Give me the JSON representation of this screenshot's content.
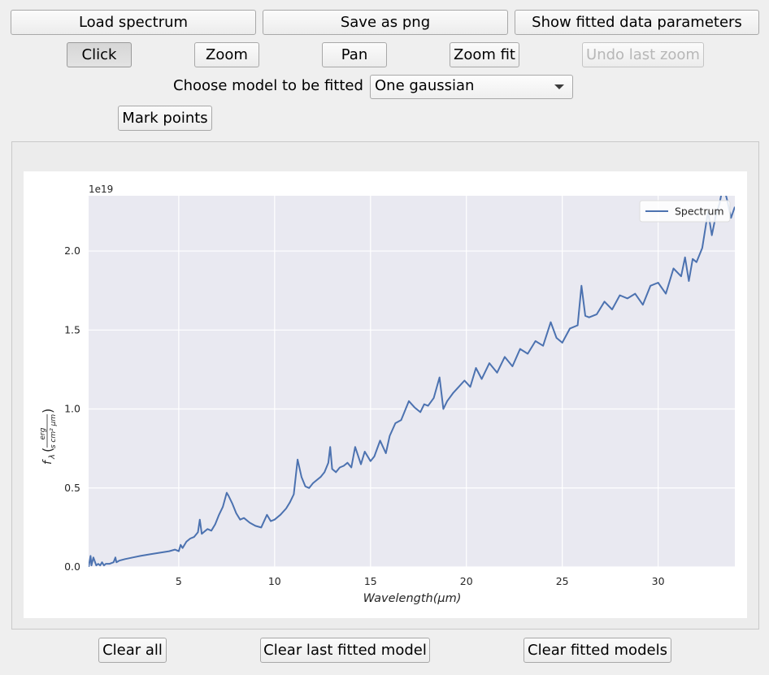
{
  "toolbar_row1": {
    "load": "Load spectrum",
    "save": "Save as png",
    "show_params": "Show fitted data parameters"
  },
  "toolbar_row2": {
    "click": "Click",
    "zoom": "Zoom",
    "pan": "Pan",
    "zoom_fit": "Zoom fit",
    "undo_zoom": "Undo last zoom"
  },
  "model_selector": {
    "label": "Choose model to be fitted",
    "selected": "One gaussian"
  },
  "mark_points": "Mark points",
  "bottom_buttons": {
    "clear_all": "Clear all",
    "clear_last": "Clear last fitted model",
    "clear_models": "Clear fitted models"
  },
  "chart_data": {
    "type": "line",
    "xlabel": "Wavelength(μm)",
    "ylabel": "f_λ(erg / s cm² μm)",
    "ylabel_parts": {
      "f": "f",
      "sub": "λ",
      "num": "erg",
      "den": "s cm² μm"
    },
    "offset_text": "1e19",
    "xlim": [
      0.3,
      34
    ],
    "ylim": [
      0,
      2.35
    ],
    "xticks": [
      5,
      10,
      15,
      20,
      25,
      30
    ],
    "yticks": [
      0.0,
      0.5,
      1.0,
      1.5,
      2.0
    ],
    "ytick_labels": [
      "0.0",
      "0.5",
      "1.0",
      "1.5",
      "2.0"
    ],
    "grid": true,
    "background": "#e9e9f1",
    "legend_position": "top-right",
    "series": [
      {
        "name": "Spectrum",
        "color": "#4c72b0",
        "x": [
          0.3,
          0.4,
          0.45,
          0.55,
          0.7,
          0.8,
          0.9,
          1.0,
          1.1,
          1.2,
          1.4,
          1.6,
          1.7,
          1.75,
          1.9,
          2.2,
          2.6,
          3.0,
          3.5,
          4.0,
          4.5,
          4.8,
          5.0,
          5.1,
          5.2,
          5.4,
          5.6,
          5.8,
          6.0,
          6.1,
          6.2,
          6.3,
          6.5,
          6.7,
          6.9,
          7.1,
          7.3,
          7.5,
          7.6,
          7.8,
          8.0,
          8.2,
          8.4,
          8.7,
          9.0,
          9.3,
          9.6,
          9.8,
          10.0,
          10.3,
          10.6,
          10.8,
          11.0,
          11.2,
          11.4,
          11.6,
          11.8,
          12.0,
          12.2,
          12.4,
          12.6,
          12.8,
          12.9,
          13.0,
          13.2,
          13.4,
          13.6,
          13.8,
          14.0,
          14.2,
          14.5,
          14.7,
          15.0,
          15.2,
          15.5,
          15.8,
          16.0,
          16.3,
          16.6,
          17.0,
          17.3,
          17.6,
          17.8,
          18.0,
          18.3,
          18.6,
          18.8,
          19.0,
          19.3,
          19.6,
          19.9,
          20.2,
          20.5,
          20.8,
          21.2,
          21.6,
          22.0,
          22.4,
          22.8,
          23.2,
          23.6,
          24.0,
          24.4,
          24.7,
          25.0,
          25.4,
          25.8,
          26.0,
          26.2,
          26.4,
          26.8,
          27.2,
          27.6,
          28.0,
          28.4,
          28.8,
          29.2,
          29.6,
          30.0,
          30.4,
          30.8,
          31.2,
          31.4,
          31.6,
          31.8,
          32.0,
          32.3,
          32.6,
          32.8,
          33.0,
          33.2,
          33.4,
          33.6,
          33.8,
          34.0
        ],
        "y": [
          0.0,
          0.07,
          0.01,
          0.06,
          0.01,
          0.02,
          0.01,
          0.03,
          0.01,
          0.02,
          0.02,
          0.03,
          0.06,
          0.03,
          0.04,
          0.05,
          0.06,
          0.07,
          0.08,
          0.09,
          0.1,
          0.11,
          0.1,
          0.14,
          0.12,
          0.16,
          0.18,
          0.19,
          0.22,
          0.3,
          0.21,
          0.22,
          0.24,
          0.23,
          0.27,
          0.33,
          0.38,
          0.47,
          0.45,
          0.4,
          0.34,
          0.3,
          0.31,
          0.28,
          0.26,
          0.25,
          0.33,
          0.29,
          0.3,
          0.33,
          0.37,
          0.41,
          0.46,
          0.68,
          0.57,
          0.51,
          0.5,
          0.53,
          0.55,
          0.57,
          0.6,
          0.66,
          0.76,
          0.62,
          0.6,
          0.63,
          0.64,
          0.66,
          0.63,
          0.76,
          0.65,
          0.73,
          0.67,
          0.7,
          0.8,
          0.72,
          0.83,
          0.91,
          0.93,
          1.05,
          1.01,
          0.98,
          1.03,
          1.02,
          1.07,
          1.2,
          1.0,
          1.05,
          1.1,
          1.14,
          1.18,
          1.14,
          1.26,
          1.19,
          1.29,
          1.23,
          1.33,
          1.27,
          1.38,
          1.35,
          1.43,
          1.4,
          1.55,
          1.45,
          1.42,
          1.51,
          1.53,
          1.78,
          1.59,
          1.58,
          1.6,
          1.68,
          1.63,
          1.72,
          1.7,
          1.73,
          1.66,
          1.78,
          1.8,
          1.73,
          1.89,
          1.84,
          1.96,
          1.81,
          1.95,
          1.93,
          2.02,
          2.25,
          2.1,
          2.22,
          2.3,
          2.42,
          2.32,
          2.21,
          2.28
        ]
      }
    ]
  }
}
